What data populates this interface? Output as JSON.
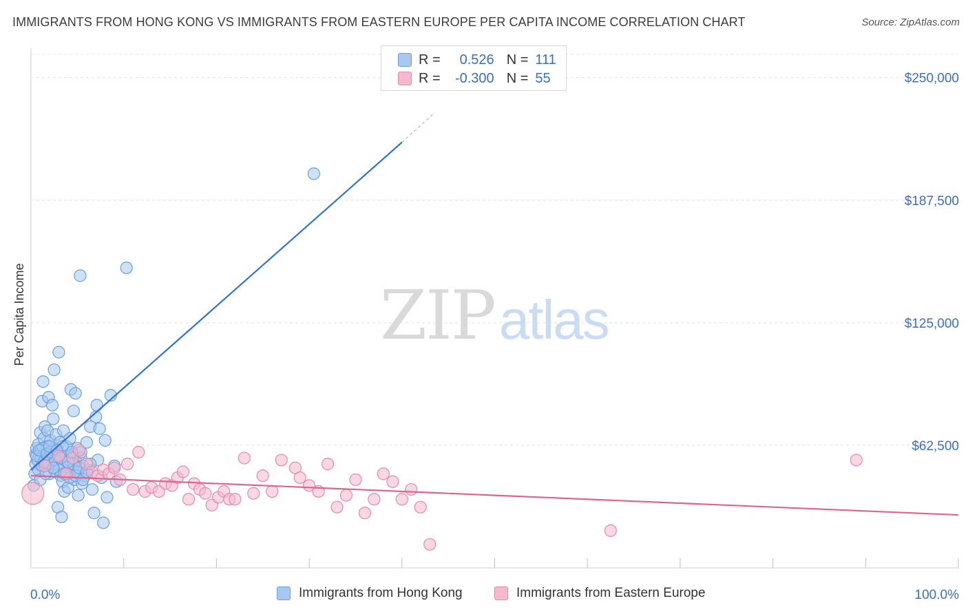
{
  "header": {
    "title": "IMMIGRANTS FROM HONG KONG VS IMMIGRANTS FROM EASTERN EUROPE PER CAPITA INCOME CORRELATION CHART",
    "source": "Source: ZipAtlas.com"
  },
  "watermark": {
    "zip": "ZIP",
    "atlas": "atlas"
  },
  "stats_legend": {
    "rows": [
      {
        "r_label": "R =",
        "r_value": "0.526",
        "n_label": "N =",
        "n_value": "111",
        "color": "#a8c8f0",
        "border": "#6a9fe0"
      },
      {
        "r_label": "R =",
        "r_value": "-0.300",
        "n_label": "N =",
        "n_value": "55",
        "color": "#f6b8cc",
        "border": "#e889a8"
      }
    ]
  },
  "chart_data": {
    "type": "scatter",
    "title": "IMMIGRANTS FROM HONG KONG VS IMMIGRANTS FROM EASTERN EUROPE PER CAPITA INCOME CORRELATION CHART",
    "xlabel": "",
    "ylabel": "Per Capita Income",
    "xlim": [
      0,
      100
    ],
    "ylim": [
      0,
      265000
    ],
    "x_tick_labels": [
      "0.0%",
      "100.0%"
    ],
    "y_ticks": [
      62500,
      125000,
      187500,
      250000
    ],
    "y_tick_labels": [
      "$62,500",
      "$125,000",
      "$187,500",
      "$250,000"
    ],
    "grid": true,
    "legend_position": "bottom",
    "series": [
      {
        "name": "Immigrants from Hong Kong",
        "color": "#6a9fe0",
        "fill": "#a8c8f0",
        "trend_color": "#2f72d3",
        "trend": {
          "x": [
            0.0,
            40.0
          ],
          "y": [
            50000,
            217000
          ],
          "dashed_to": [
            43.5,
            232000
          ]
        },
        "points": [
          [
            0.3,
            42000
          ],
          [
            0.4,
            48000
          ],
          [
            0.5,
            53000
          ],
          [
            0.5,
            58000
          ],
          [
            0.6,
            61000
          ],
          [
            0.7,
            55000
          ],
          [
            0.8,
            63000
          ],
          [
            0.8,
            50000
          ],
          [
            0.9,
            57000
          ],
          [
            1.0,
            45000
          ],
          [
            1.0,
            69000
          ],
          [
            1.1,
            60000
          ],
          [
            1.2,
            52000
          ],
          [
            1.2,
            85000
          ],
          [
            1.3,
            95000
          ],
          [
            1.4,
            66000
          ],
          [
            1.5,
            58000
          ],
          [
            1.5,
            72000
          ],
          [
            1.6,
            54000
          ],
          [
            1.7,
            62000
          ],
          [
            1.8,
            70000
          ],
          [
            1.9,
            87000
          ],
          [
            2.0,
            48000
          ],
          [
            2.0,
            59000
          ],
          [
            2.1,
            65000
          ],
          [
            2.2,
            56000
          ],
          [
            2.3,
            83000
          ],
          [
            2.4,
            76000
          ],
          [
            2.5,
            101000
          ],
          [
            2.5,
            61000
          ],
          [
            2.6,
            49000
          ],
          [
            2.7,
            68000
          ],
          [
            2.8,
            53000
          ],
          [
            2.9,
            31000
          ],
          [
            3.0,
            110000
          ],
          [
            3.0,
            58000
          ],
          [
            3.1,
            64000
          ],
          [
            3.2,
            47000
          ],
          [
            3.3,
            26000
          ],
          [
            3.4,
            44000
          ],
          [
            3.5,
            52000
          ],
          [
            3.5,
            70000
          ],
          [
            3.6,
            39000
          ],
          [
            3.7,
            57000
          ],
          [
            3.8,
            62000
          ],
          [
            3.9,
            48000
          ],
          [
            4.0,
            41000
          ],
          [
            4.1,
            55000
          ],
          [
            4.2,
            66000
          ],
          [
            4.3,
            91000
          ],
          [
            4.4,
            50000
          ],
          [
            4.5,
            58000
          ],
          [
            4.6,
            80000
          ],
          [
            4.7,
            45000
          ],
          [
            4.8,
            89000
          ],
          [
            4.9,
            54000
          ],
          [
            5.0,
            61000
          ],
          [
            5.1,
            37000
          ],
          [
            5.2,
            48000
          ],
          [
            5.3,
            149000
          ],
          [
            5.4,
            56000
          ],
          [
            5.5,
            43000
          ],
          [
            5.6,
            52000
          ],
          [
            5.8,
            47000
          ],
          [
            6.0,
            64000
          ],
          [
            6.2,
            50000
          ],
          [
            6.4,
            72000
          ],
          [
            6.6,
            40000
          ],
          [
            6.8,
            28000
          ],
          [
            7.0,
            77000
          ],
          [
            7.1,
            83000
          ],
          [
            7.2,
            55000
          ],
          [
            7.4,
            71000
          ],
          [
            7.6,
            46000
          ],
          [
            7.8,
            23000
          ],
          [
            8.0,
            65000
          ],
          [
            8.2,
            36000
          ],
          [
            8.6,
            88000
          ],
          [
            9.0,
            52000
          ],
          [
            9.2,
            44000
          ],
          [
            10.3,
            153000
          ],
          [
            30.5,
            201000
          ],
          [
            1.1,
            56000
          ],
          [
            1.3,
            61000
          ],
          [
            1.6,
            48000
          ],
          [
            1.9,
            53000
          ],
          [
            2.2,
            59000
          ],
          [
            2.6,
            55000
          ],
          [
            3.0,
            50000
          ],
          [
            3.4,
            62000
          ],
          [
            3.8,
            57000
          ],
          [
            4.2,
            46000
          ],
          [
            4.6,
            53000
          ],
          [
            5.0,
            49000
          ],
          [
            5.4,
            59000
          ],
          [
            0.6,
            57000
          ],
          [
            0.9,
            60000
          ],
          [
            1.4,
            54000
          ],
          [
            1.7,
            58000
          ],
          [
            2.0,
            62000
          ],
          [
            2.4,
            51000
          ],
          [
            2.8,
            60000
          ],
          [
            3.2,
            56000
          ],
          [
            3.6,
            48000
          ],
          [
            4.0,
            54000
          ],
          [
            4.4,
            59000
          ],
          [
            4.8,
            47000
          ],
          [
            5.2,
            51000
          ],
          [
            5.6,
            45000
          ],
          [
            6.0,
            49000
          ],
          [
            6.4,
            53000
          ]
        ]
      },
      {
        "name": "Immigrants from Eastern Europe",
        "color": "#e889a8",
        "fill": "#f6b8cc",
        "trend_color": "#e0628e",
        "trend": {
          "x": [
            0.0,
            100.0
          ],
          "y": [
            47000,
            27000
          ]
        },
        "points": [
          [
            0.2,
            38000
          ],
          [
            1.5,
            52000
          ],
          [
            3.0,
            57000
          ],
          [
            3.8,
            48000
          ],
          [
            4.5,
            56000
          ],
          [
            5.2,
            60000
          ],
          [
            6.0,
            53000
          ],
          [
            6.6,
            49000
          ],
          [
            7.2,
            47000
          ],
          [
            7.8,
            50000
          ],
          [
            8.4,
            48000
          ],
          [
            9.0,
            51000
          ],
          [
            9.6,
            45000
          ],
          [
            10.4,
            53000
          ],
          [
            11.0,
            40000
          ],
          [
            11.6,
            59000
          ],
          [
            12.3,
            39000
          ],
          [
            13.0,
            41000
          ],
          [
            13.8,
            39000
          ],
          [
            14.5,
            43000
          ],
          [
            15.2,
            42000
          ],
          [
            15.8,
            46000
          ],
          [
            16.4,
            49000
          ],
          [
            17.0,
            35000
          ],
          [
            17.6,
            43000
          ],
          [
            18.2,
            40000
          ],
          [
            18.8,
            38000
          ],
          [
            19.5,
            32000
          ],
          [
            20.2,
            36000
          ],
          [
            20.8,
            39000
          ],
          [
            21.4,
            35000
          ],
          [
            22.0,
            35000
          ],
          [
            23.0,
            56000
          ],
          [
            24.0,
            38000
          ],
          [
            25.0,
            47000
          ],
          [
            26.0,
            39000
          ],
          [
            27.0,
            55000
          ],
          [
            28.5,
            51000
          ],
          [
            29.0,
            46000
          ],
          [
            30.0,
            42000
          ],
          [
            31.0,
            39000
          ],
          [
            32.0,
            53000
          ],
          [
            33.0,
            31000
          ],
          [
            34.0,
            37000
          ],
          [
            35.0,
            45000
          ],
          [
            36.0,
            28000
          ],
          [
            37.0,
            35000
          ],
          [
            38.0,
            48000
          ],
          [
            39.0,
            44000
          ],
          [
            40.0,
            35000
          ],
          [
            41.0,
            40000
          ],
          [
            42.0,
            31000
          ],
          [
            43.0,
            12000
          ],
          [
            62.5,
            19000
          ],
          [
            89.0,
            55000
          ]
        ]
      }
    ]
  },
  "bottom_legend": {
    "items": [
      {
        "label": "Immigrants from Hong Kong"
      },
      {
        "label": "Immigrants from Eastern Europe"
      }
    ]
  }
}
